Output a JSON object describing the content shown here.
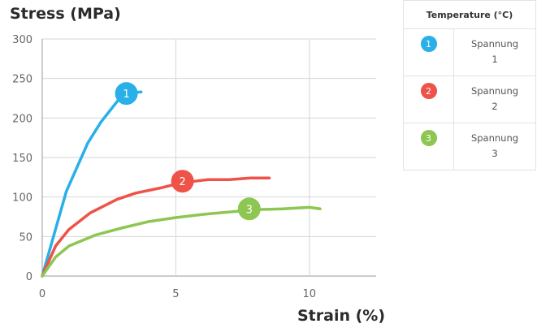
{
  "chart_data": {
    "type": "line",
    "ylabel": "Stress (MPa)",
    "xlabel": "Strain (%)",
    "xlim": [
      0,
      12.5
    ],
    "ylim": [
      0,
      300
    ],
    "x_ticks": [
      0,
      5,
      10
    ],
    "y_ticks": [
      0,
      50,
      100,
      150,
      200,
      250,
      300
    ],
    "grid": true,
    "legend_position": "top-right",
    "legend_title": "Temperature (°C)",
    "series": [
      {
        "name": "Spannung 1",
        "number": "1",
        "color": "#29b0e8",
        "x": [
          0,
          0.9,
          1.7,
          2.2,
          2.9,
          3.4,
          3.7
        ],
        "y": [
          0,
          107,
          168,
          195,
          225,
          232,
          233
        ]
      },
      {
        "name": "Spannung 2",
        "number": "2",
        "color": "#ee5248",
        "x": [
          0,
          0.5,
          1.0,
          1.8,
          2.8,
          3.5,
          4.5,
          5.2,
          6.2,
          7.0,
          7.8,
          8.5
        ],
        "y": [
          0,
          38,
          59,
          80,
          97,
          105,
          112,
          118,
          122,
          122,
          124,
          124
        ]
      },
      {
        "name": "Spannung 3",
        "number": "3",
        "color": "#8dc650",
        "x": [
          0,
          0.5,
          1.0,
          2.0,
          3.0,
          4.0,
          5.0,
          6.0,
          7.0,
          8.0,
          9.0,
          10.0,
          10.4
        ],
        "y": [
          0,
          24,
          38,
          52,
          61,
          69,
          74,
          78,
          81,
          84,
          85,
          87,
          85
        ]
      }
    ],
    "markers": [
      {
        "series": 0,
        "x": 3.15,
        "y": 231
      },
      {
        "series": 1,
        "x": 5.25,
        "y": 120
      },
      {
        "series": 2,
        "x": 7.75,
        "y": 85
      }
    ]
  },
  "legend": {
    "header": "Temperature (°C)",
    "rows": [
      {
        "number": "1",
        "line1": "Spannung",
        "line2": "1"
      },
      {
        "number": "2",
        "line1": "Spannung",
        "line2": "2"
      },
      {
        "number": "3",
        "line1": "Spannung",
        "line2": "3"
      }
    ]
  }
}
